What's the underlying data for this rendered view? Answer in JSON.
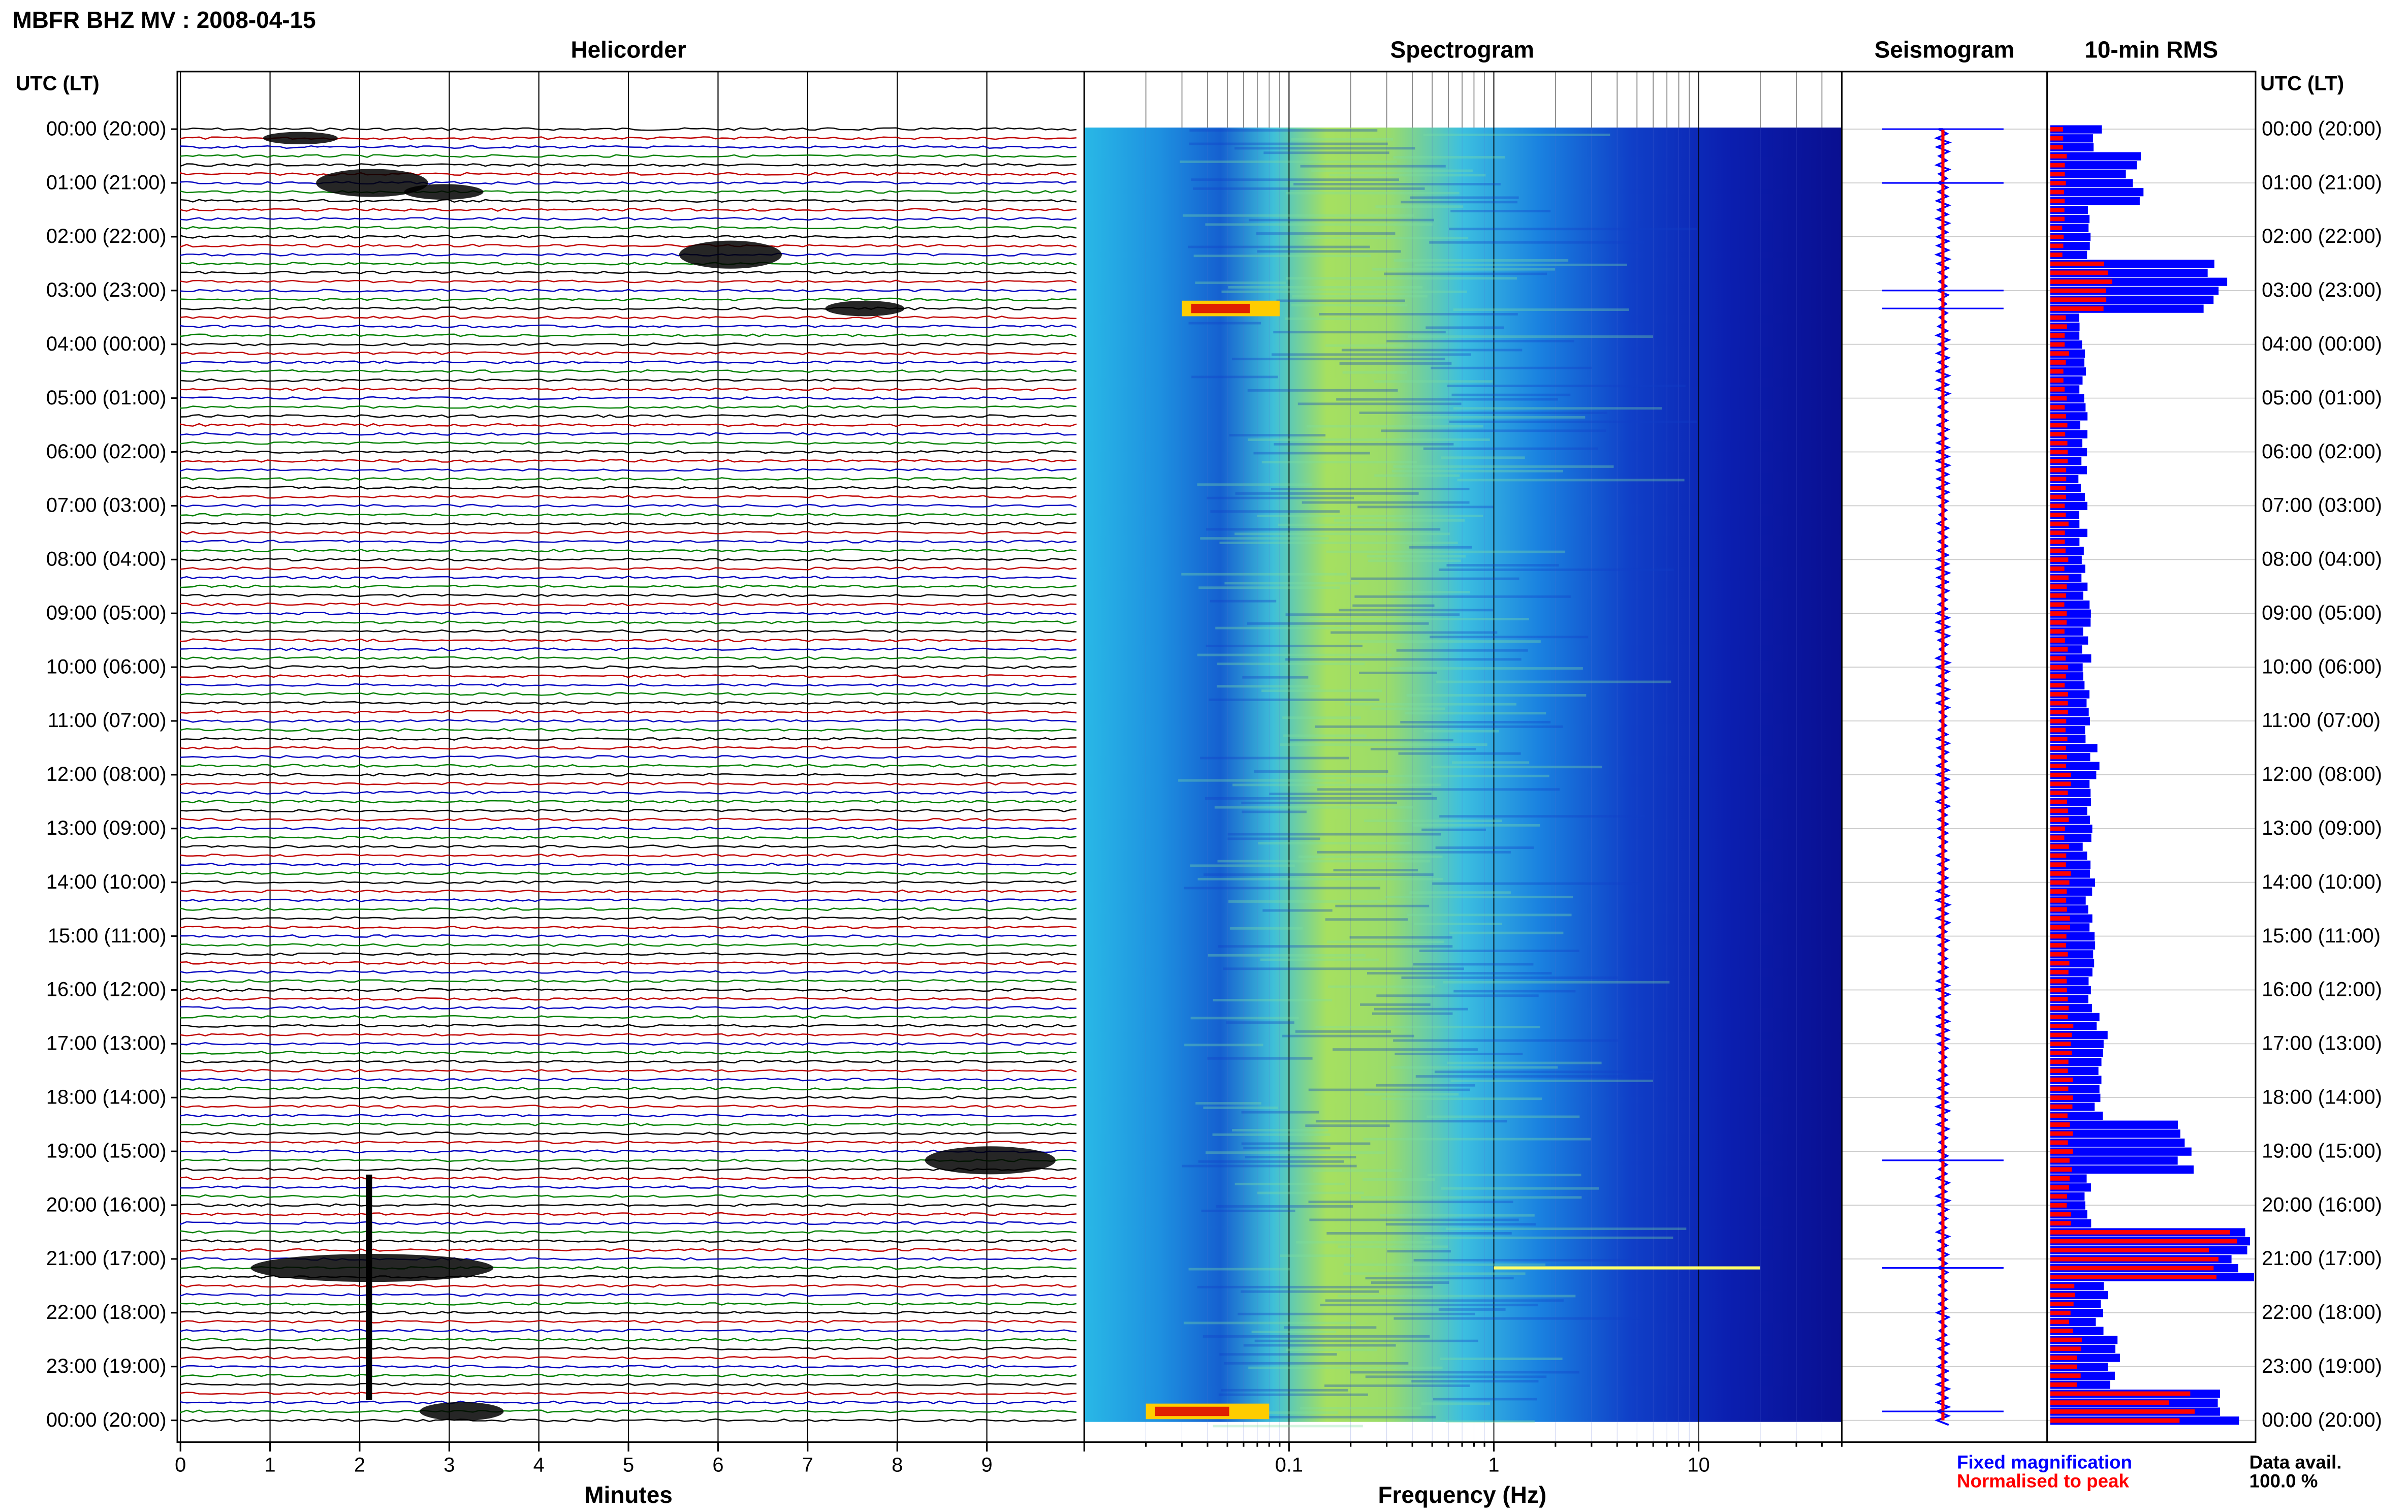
{
  "header": {
    "title": "MBFR BHZ MV : 2008-04-15",
    "utc_left_label": "UTC (LT)",
    "utc_right_label": "UTC (LT)"
  },
  "panels": {
    "helicorder_title": "Helicorder",
    "spectrogram_title": "Spectrogram",
    "seismogram_title": "Seismogram",
    "rms_title": "10-min RMS"
  },
  "footer": {
    "helicorder_xlabel": "Minutes",
    "spectrogram_xlabel": "Frequency (Hz)",
    "legend_fixed": "Fixed magnification",
    "legend_norm": "Normalised to peak",
    "data_avail_label": "Data avail.",
    "data_avail_value": "100.0 %"
  },
  "colors": {
    "trace_cycle": [
      "#000000",
      "#c00000",
      "#0000c0",
      "#008000"
    ],
    "fixed": "#0000ff",
    "normalised": "#ff0000",
    "grid": "#000000",
    "spec_low": "#00008b",
    "spec_high": "#ff0000"
  },
  "chart_data": [
    {
      "type": "line",
      "name": "helicorder",
      "title": "Helicorder",
      "xlabel": "Minutes",
      "x_ticks": [
        0,
        1,
        2,
        3,
        4,
        5,
        6,
        7,
        8,
        9
      ],
      "xlim": [
        0,
        10
      ],
      "row_minutes": 10,
      "rows": 145,
      "hour_labels": [
        "00:00 (20:00)",
        "01:00 (21:00)",
        "02:00 (22:00)",
        "03:00 (23:00)",
        "04:00 (00:00)",
        "05:00 (01:00)",
        "06:00 (02:00)",
        "07:00 (03:00)",
        "08:00 (04:00)",
        "09:00 (05:00)",
        "10:00 (06:00)",
        "11:00 (07:00)",
        "12:00 (08:00)",
        "13:00 (09:00)",
        "14:00 (10:00)",
        "15:00 (11:00)",
        "16:00 (12:00)",
        "17:00 (13:00)",
        "18:00 (14:00)",
        "19:00 (15:00)",
        "20:00 (16:00)",
        "21:00 (17:00)",
        "22:00 (18:00)",
        "23:00 (19:00)",
        "00:00 (20:00)"
      ],
      "events": [
        {
          "time_utc": "00:10",
          "minute": 1.2,
          "amp": 0.4
        },
        {
          "time_utc": "01:00",
          "minute": 2.0,
          "amp": 1.2
        },
        {
          "time_utc": "01:10",
          "minute": 2.8,
          "amp": 0.5
        },
        {
          "time_utc": "02:20",
          "minute": 6.0,
          "amp": 1.0
        },
        {
          "time_utc": "03:20",
          "minute": 7.5,
          "amp": 0.5
        },
        {
          "time_utc": "19:10",
          "minute": 8.9,
          "amp": 1.6
        },
        {
          "time_utc": "21:10",
          "minute": 2.0,
          "amp": 4.0
        },
        {
          "time_utc": "23:50",
          "minute": 3.0,
          "amp": 0.6
        }
      ]
    },
    {
      "type": "heatmap",
      "name": "spectrogram",
      "title": "Spectrogram",
      "xlabel": "Frequency (Hz)",
      "x_scale": "log",
      "xlim": [
        0.01,
        50
      ],
      "x_tick_labels": [
        "0.1",
        "1",
        "10"
      ],
      "x_tick_values": [
        0.1,
        1,
        10
      ],
      "peak_band_hz": [
        0.2,
        0.8
      ]
    },
    {
      "type": "line",
      "name": "seismogram",
      "title": "Seismogram",
      "spikes_utc": [
        "01:00",
        "03:00",
        "03:20",
        "19:10",
        "21:10",
        "23:50",
        "00:00"
      ]
    },
    {
      "type": "bar",
      "name": "10-min RMS",
      "title": "10-min RMS",
      "series": [
        {
          "name": "Fixed magnification",
          "note": "blue bars, relative RMS per 10-min window"
        },
        {
          "name": "Normalised to peak",
          "note": "red bars"
        }
      ],
      "values_fixed_by_hour": [
        0.25,
        0.45,
        0.22,
        0.9,
        0.18,
        0.18,
        0.18,
        0.18,
        0.18,
        0.2,
        0.2,
        0.2,
        0.25,
        0.2,
        0.22,
        0.22,
        0.22,
        0.28,
        0.25,
        0.72,
        0.22,
        1.0,
        0.28,
        0.35,
        0.95
      ],
      "values_norm_by_hour": [
        0.08,
        0.08,
        0.07,
        0.3,
        0.09,
        0.08,
        0.09,
        0.09,
        0.09,
        0.09,
        0.09,
        0.09,
        0.1,
        0.09,
        0.1,
        0.1,
        0.1,
        0.11,
        0.11,
        0.11,
        0.1,
        0.95,
        0.12,
        0.15,
        0.7
      ]
    }
  ]
}
